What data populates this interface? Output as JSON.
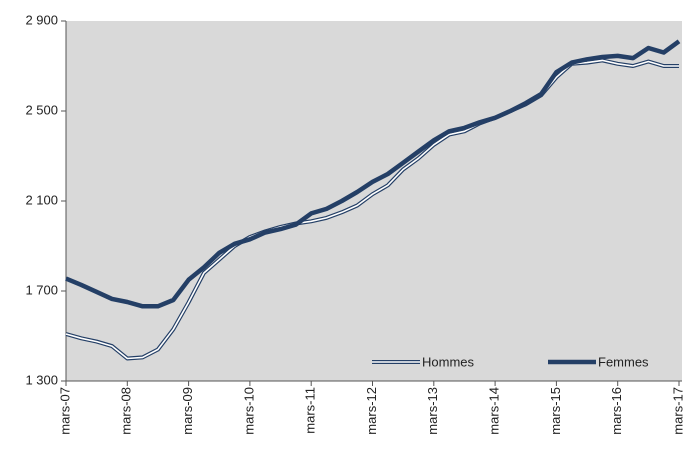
{
  "chart_data": {
    "type": "line",
    "categories": [
      "mars-07",
      null,
      null,
      null,
      "mars-08",
      null,
      null,
      null,
      "mars-09",
      null,
      null,
      null,
      "mars-10",
      null,
      null,
      null,
      "mars-11",
      null,
      null,
      null,
      "mars-12",
      null,
      null,
      null,
      "mars-13",
      null,
      null,
      null,
      "mars-14",
      null,
      null,
      null,
      "mars-15",
      null,
      null,
      null,
      "mars-16",
      null,
      null,
      null,
      "mars-17"
    ],
    "series": [
      {
        "name": "Hommes",
        "color": "#243f66",
        "style": "double",
        "values": [
          1509,
          1490,
          1475,
          1455,
          1400,
          1405,
          1440,
          1530,
          1650,
          1780,
          1840,
          1900,
          1940,
          1965,
          1985,
          2000,
          2010,
          2025,
          2050,
          2080,
          2130,
          2170,
          2240,
          2290,
          2350,
          2395,
          2410,
          2445,
          2470,
          2500,
          2530,
          2570,
          2650,
          2710,
          2715,
          2725,
          2710,
          2700,
          2720,
          2700,
          2700
        ]
      },
      {
        "name": "Femmes",
        "color": "#243f66",
        "style": "thick",
        "values": [
          1755,
          1727,
          1696,
          1665,
          1651,
          1632,
          1632,
          1660,
          1750,
          1805,
          1870,
          1910,
          1930,
          1960,
          1975,
          1995,
          2045,
          2065,
          2100,
          2140,
          2185,
          2220,
          2270,
          2320,
          2370,
          2410,
          2425,
          2450,
          2470,
          2500,
          2535,
          2575,
          2673,
          2715,
          2730,
          2740,
          2745,
          2735,
          2780,
          2760,
          2810
        ]
      }
    ],
    "ylim": [
      1300,
      2900
    ],
    "yticks": [
      {
        "value": 1300,
        "label": "1 300"
      },
      {
        "value": 1700,
        "label": "1 700"
      },
      {
        "value": 2100,
        "label": "2 100"
      },
      {
        "value": 2500,
        "label": "2 500"
      },
      {
        "value": 2900,
        "label": "2 900"
      }
    ],
    "grid": false,
    "legend": "bottom-right"
  }
}
